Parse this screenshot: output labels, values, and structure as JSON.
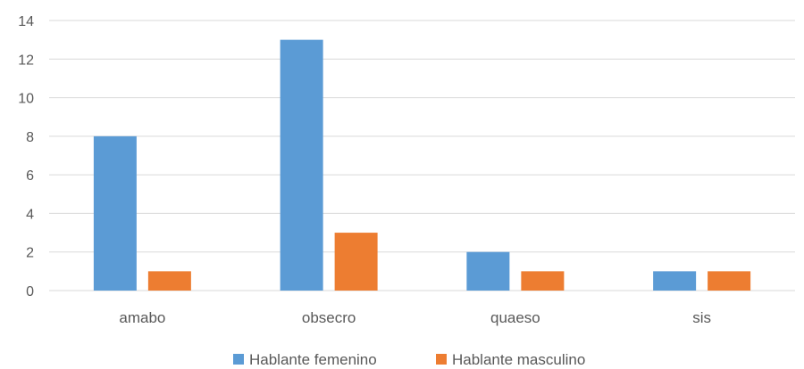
{
  "chart_data": {
    "type": "bar",
    "categories": [
      "amabo",
      "obsecro",
      "quaeso",
      "sis"
    ],
    "series": [
      {
        "name": "Hablante femenino",
        "values": [
          8,
          13,
          2,
          1
        ],
        "color": "#5b9bd5"
      },
      {
        "name": "Hablante masculino",
        "values": [
          1,
          3,
          1,
          1
        ],
        "color": "#ed7d31"
      }
    ],
    "ylim": [
      0,
      14
    ],
    "yticks": [
      "0",
      "2",
      "4",
      "6",
      "8",
      "10",
      "12",
      "14"
    ],
    "grid": true,
    "legend_position": "bottom",
    "title": "",
    "xlabel": "",
    "ylabel": ""
  }
}
